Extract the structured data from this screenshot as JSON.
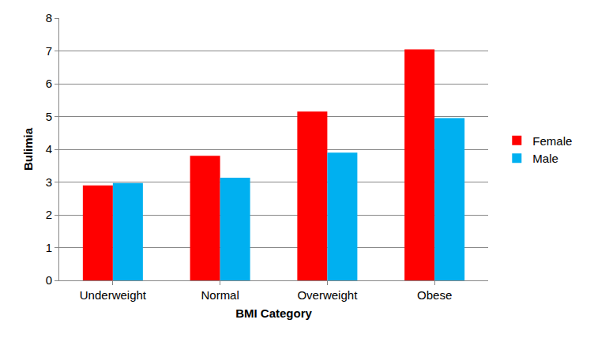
{
  "chart_data": {
    "type": "bar",
    "x_label": "BMI Category",
    "y_label": "Bulimia",
    "categories": [
      "Underweight",
      "Normal",
      "Overweight",
      "Obese"
    ],
    "series": [
      {
        "name": "Female",
        "color": "#ff0000",
        "values": [
          2.9,
          3.8,
          5.15,
          7.05
        ]
      },
      {
        "name": "Male",
        "color": "#00b0f0",
        "values": [
          2.97,
          3.13,
          3.9,
          4.95
        ]
      }
    ],
    "ylim": [
      0,
      8
    ],
    "yticks": [
      0,
      1,
      2,
      3,
      4,
      5,
      6,
      7,
      8
    ],
    "grid": true,
    "legend": "right"
  }
}
